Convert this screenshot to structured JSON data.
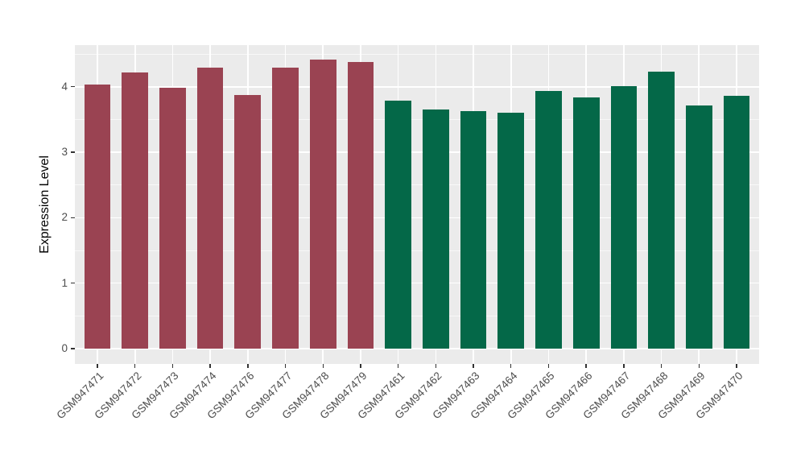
{
  "chart_data": {
    "type": "bar",
    "title": "",
    "xlabel": "",
    "ylabel": "Expression Level",
    "categories": [
      "GSM947471",
      "GSM947472",
      "GSM947473",
      "GSM947474",
      "GSM947476",
      "GSM947477",
      "GSM947478",
      "GSM947479",
      "GSM947461",
      "GSM947462",
      "GSM947463",
      "GSM947464",
      "GSM947465",
      "GSM947466",
      "GSM947467",
      "GSM947468",
      "GSM947469",
      "GSM947470"
    ],
    "values": [
      4.04,
      4.22,
      3.99,
      4.29,
      3.88,
      4.29,
      4.41,
      4.38,
      3.79,
      3.65,
      3.63,
      3.61,
      3.93,
      3.84,
      4.01,
      4.23,
      3.72,
      3.86
    ],
    "groups": [
      "group1",
      "group1",
      "group1",
      "group1",
      "group1",
      "group1",
      "group1",
      "group1",
      "group2",
      "group2",
      "group2",
      "group2",
      "group2",
      "group2",
      "group2",
      "group2",
      "group2",
      "group2"
    ],
    "group_colors": {
      "group1": "#9A4352",
      "group2": "#046848"
    },
    "yticks": [
      "0",
      "1",
      "2",
      "3",
      "4"
    ],
    "ytick_values": [
      0,
      1,
      2,
      3,
      4
    ],
    "yticks_minor": [
      0.5,
      1.5,
      2.5,
      3.5,
      4.5
    ],
    "ylim": [
      -0.23,
      4.66
    ],
    "grid": "on",
    "legend": "none",
    "panel_background": "#EBEBEB",
    "gridline_color": "#FFFFFF",
    "axis_text_color": "#4D4D4D",
    "axis_title_color": "#000000",
    "tick_mark_color": "#333333",
    "figure_background": "#FFFFFF"
  }
}
